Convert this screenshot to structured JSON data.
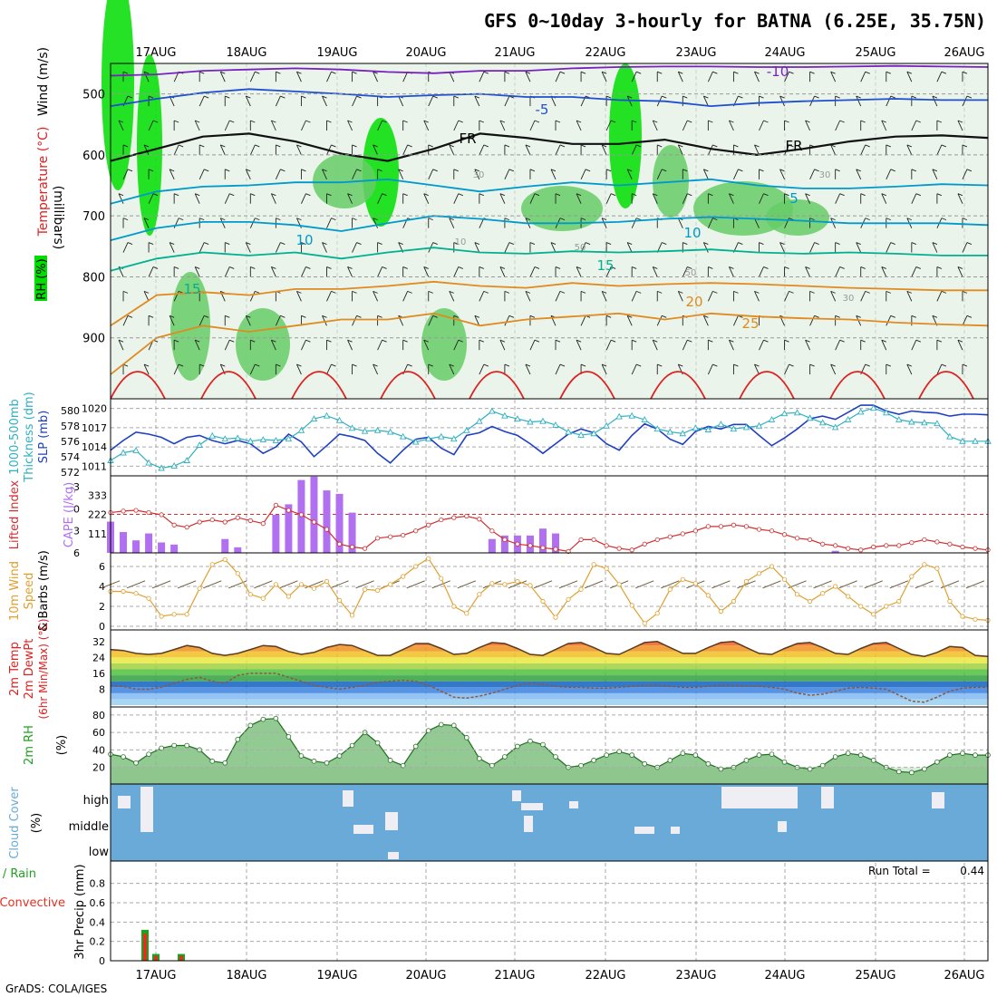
{
  "header": {
    "title": "GFS 0~10day 3-hourly for BATNA (6.25E, 35.75N)",
    "footer": "GrADS: COLA/IGES"
  },
  "colors": {
    "rh_dark": "#00dd00",
    "rh_mid": "#66cc66",
    "rh_light": "#dcecdc",
    "temp_red": "#dd2222",
    "temp_orange": "#e08a20",
    "temp_teal": "#00b090",
    "temp_cyan": "#0099cc",
    "temp_blue": "#1f4fd0",
    "temp_purple": "#7a20c0",
    "slp": "#2040c0",
    "thickness": "#30b0c0",
    "cape": "#b070f0",
    "lifted": "#d03030",
    "wind": "#e0a030",
    "cloud": "#6aaad8",
    "rain": "#20a020",
    "conv": "#e03020"
  },
  "chart_data": {
    "type": "meteogram",
    "dates": [
      "17AUG",
      "18AUG",
      "19AUG",
      "20AUG",
      "21AUG",
      "22AUG",
      "23AUG",
      "24AUG",
      "25AUG",
      "26AUG"
    ],
    "panels": {
      "upper": {
        "ylabels": [
          "Temperature (°C)",
          "Wind (m/s)",
          "RH (%)"
        ],
        "axis_label": "(millibars)",
        "yticks": [
          500,
          600,
          700,
          800,
          900
        ],
        "ylim": [
          1000,
          450
        ],
        "contour_labels": [
          "-10",
          "-5",
          "5",
          "10",
          "15",
          "20",
          "25",
          "FR",
          "FR",
          "30",
          "10",
          "50",
          "50",
          "30",
          "30"
        ],
        "isotherms": [
          {
            "label": "-10",
            "value": -10,
            "p": [
              470,
              468,
              462,
              460,
              458,
              460,
              464,
              466,
              462,
              462,
              458,
              456,
              455,
              455,
              456,
              456,
              455,
              454,
              455,
              456
            ]
          },
          {
            "label": "-5",
            "value": -5,
            "p": [
              520,
              508,
              498,
              492,
              496,
              500,
              505,
              502,
              500,
              505,
              505,
              510,
              512,
              520,
              515,
              512,
              510,
              508,
              510,
              510
            ]
          },
          {
            "label": "FR",
            "value": 0,
            "p": [
              610,
              590,
              570,
              565,
              578,
              598,
              610,
              590,
              565,
              572,
              582,
              582,
              575,
              590,
              600,
              590,
              578,
              570,
              568,
              572
            ]
          },
          {
            "label": "5",
            "value": 5,
            "p": [
              680,
              660,
              652,
              650,
              645,
              645,
              640,
              650,
              660,
              652,
              645,
              650,
              645,
              640,
              650,
              655,
              655,
              652,
              648,
              650
            ]
          },
          {
            "label": "10",
            "value": 10,
            "p": [
              740,
              720,
              710,
              710,
              715,
              725,
              712,
              700,
              705,
              712,
              712,
              710,
              705,
              702,
              705,
              708,
              712,
              712,
              712,
              715
            ]
          },
          {
            "label": "15",
            "value": 15,
            "p": [
              790,
              770,
              760,
              765,
              760,
              770,
              760,
              752,
              760,
              762,
              758,
              760,
              758,
              755,
              760,
              762,
              760,
              762,
              765,
              765
            ]
          },
          {
            "label": "20",
            "value": 20,
            "p": [
              880,
              830,
              825,
              830,
              820,
              820,
              815,
              808,
              815,
              818,
              810,
              815,
              812,
              810,
              812,
              815,
              818,
              820,
              822,
              822
            ]
          },
          {
            "label": "25",
            "value": 25,
            "p": [
              960,
              900,
              880,
              890,
              880,
              870,
              870,
              860,
              880,
              870,
              865,
              860,
              870,
              860,
              865,
              868,
              870,
              875,
              878,
              880
            ]
          }
        ]
      },
      "slp_thickness": {
        "ylabels": [
          "1000-500mb",
          "Thickness (dm)",
          "SLP (mb)"
        ],
        "left_ticks": [
          572,
          574,
          576,
          578,
          580
        ],
        "right_ticks": [
          1011,
          1014,
          1017,
          1020
        ],
        "slp": [
          1013.5,
          1015,
          1016.3,
          1016,
          1015.5,
          1014.5,
          1015.5,
          1015.8,
          1015,
          1014.5,
          1015,
          1014.5,
          1013,
          1014,
          1016,
          1014.8,
          1012.5,
          1014.2,
          1016,
          1015.6,
          1015,
          1013,
          1011.5,
          1013.5,
          1015.2,
          1015.5,
          1013.8,
          1012.8,
          1015.8,
          1016.2,
          1017.2,
          1016.4,
          1015.8,
          1014.5,
          1013,
          1014.5,
          1016,
          1016.8,
          1016.2,
          1014.5,
          1013.5,
          1015.8,
          1017.6,
          1016.8,
          1015.2,
          1014.4,
          1016.4,
          1017.2,
          1016.8,
          1017.5,
          1017.5,
          1015.8,
          1014.2,
          1015.4,
          1016.8,
          1018.4,
          1018.8,
          1018.3,
          1019.4,
          1020.5,
          1020.5,
          1019.6,
          1019.1,
          1019.6,
          1019.4,
          1019.3,
          1018.8,
          1019.1,
          1019.1,
          1019.0
        ],
        "thickness": [
          573.5,
          574.5,
          574.8,
          573.2,
          572.5,
          572.8,
          573.5,
          575.5,
          576.7,
          576.3,
          576.4,
          576.0,
          576.2,
          576.1,
          576.3,
          577.4,
          578.9,
          579.3,
          578.7,
          577.7,
          577.3,
          577.4,
          577.2,
          576.6,
          575.9,
          576.3,
          576.6,
          576.3,
          577.4,
          578.6,
          579.9,
          579.3,
          578.9,
          578.5,
          578.6,
          578.1,
          577.2,
          576.8,
          577.0,
          578.0,
          579.2,
          579.3,
          578.8,
          577.6,
          577.2,
          577.0,
          577.7,
          577.5,
          578.2,
          577.6,
          577.8,
          578.0,
          578.8,
          579.6,
          579.7,
          579.0,
          578.4,
          577.8,
          578.8,
          579.8,
          580.3,
          579.7,
          578.8,
          578.5,
          578.4,
          578.3,
          576.6,
          576.0,
          576.0,
          576.0
        ]
      },
      "cape_li": {
        "ylabels": [
          "Lifted Index",
          "CAPE (J/kg)"
        ],
        "left_ticks": [
          -3,
          0,
          3,
          6
        ],
        "right_ticks": [
          111,
          222,
          333
        ],
        "cape": [
          45,
          30,
          18,
          28,
          15,
          12,
          0,
          0,
          0,
          20,
          8,
          0,
          0,
          55,
          70,
          105,
          110,
          90,
          85,
          58,
          0,
          0,
          0,
          0,
          0,
          0,
          0,
          0,
          0,
          0,
          20,
          25,
          25,
          25,
          35,
          28,
          0,
          0,
          0,
          0,
          0,
          0,
          0,
          0,
          0,
          0,
          0,
          0,
          0,
          0,
          0,
          0,
          0,
          0,
          0,
          0,
          0,
          3,
          0,
          0,
          0,
          0,
          0,
          0,
          0,
          0,
          0,
          0,
          0,
          0
        ],
        "lifted_index": [
          0.5,
          0.3,
          0.2,
          0.5,
          0.8,
          2.2,
          2.5,
          1.8,
          1.5,
          1.8,
          1.2,
          1.6,
          2.0,
          -0.5,
          0.2,
          0.8,
          1.8,
          2.8,
          4.8,
          5.2,
          5.4,
          4.0,
          3.8,
          3.6,
          3.0,
          2.2,
          1.5,
          1.2,
          1.0,
          1.4,
          3.0,
          4.2,
          4.8,
          5.0,
          5.3,
          5.5,
          5.8,
          4.2,
          4.2,
          5.0,
          5.4,
          5.6,
          4.8,
          4.2,
          3.8,
          3.4,
          3.0,
          2.4,
          2.4,
          2.2,
          2.4,
          2.8,
          3.0,
          3.5,
          4.0,
          4.2,
          4.8,
          5.0,
          5.4,
          5.6,
          5.2,
          5.0,
          5.0,
          4.6,
          4.2,
          4.5,
          4.8,
          5.2,
          5.4,
          5.6
        ]
      },
      "wind10m": {
        "ylabels": [
          "10m Wind",
          "Speed",
          "& Barbs (m/s)"
        ],
        "yticks": [
          0,
          2,
          4,
          6
        ],
        "speed": [
          3.5,
          3.5,
          3.3,
          2.8,
          1.0,
          1.2,
          1.2,
          3.8,
          6.2,
          6.7,
          5.3,
          3.2,
          2.8,
          4.2,
          3.0,
          4.2,
          3.8,
          4.5,
          2.6,
          1.1,
          3.7,
          3.6,
          4.2,
          5.0,
          6.0,
          6.8,
          4.8,
          2.0,
          1.3,
          3.2,
          4.3,
          4.2,
          4.5,
          4.1,
          2.5,
          0.9,
          2.7,
          3.7,
          6.2,
          5.8,
          4.2,
          2.1,
          0.3,
          1.3,
          3.7,
          4.7,
          4.3,
          3.1,
          1.5,
          2.5,
          4.5,
          5.3,
          6.0,
          4.7,
          3.2,
          2.5,
          3.3,
          4.0,
          3.0,
          2.0,
          1.2,
          2.0,
          2.5,
          5.0,
          6.2,
          5.8,
          2.5,
          1.0,
          0.7,
          0.6
        ]
      },
      "temp2m": {
        "ylabels": [
          "2m Temp",
          "2m DewPt",
          "(6hr Min/Max) (°C)"
        ],
        "yticks": [
          8,
          16,
          24,
          32
        ],
        "temp": [
          28,
          27.5,
          26,
          25.5,
          26,
          28,
          30,
          29,
          26,
          25,
          26,
          28,
          30,
          29.5,
          27,
          25.5,
          26.5,
          29,
          30.5,
          30,
          27.5,
          25,
          25,
          28,
          31,
          31,
          28.5,
          25.5,
          26,
          29,
          31.5,
          31,
          28.5,
          25.5,
          25,
          28,
          31,
          31.5,
          29,
          26,
          25.5,
          28.5,
          31.5,
          32,
          29,
          26,
          26,
          29,
          31.5,
          32,
          29,
          26,
          25.5,
          28.5,
          31,
          31.5,
          29,
          26,
          25.5,
          28.5,
          31,
          31.5,
          28.5,
          25.5,
          24.5,
          26.5,
          29.5,
          29,
          25,
          24.5
        ],
        "dewpoint": [
          10,
          9.5,
          8,
          8,
          9,
          11,
          13,
          14,
          12,
          11,
          15,
          16,
          16,
          16,
          14,
          12,
          10,
          9,
          8,
          9,
          10,
          11.5,
          12,
          12.5,
          12,
          10,
          7,
          4,
          3.5,
          4.5,
          6,
          8,
          10,
          11,
          10.5,
          9.5,
          9,
          9,
          8.5,
          8.5,
          9,
          9.5,
          10,
          10,
          9.5,
          9,
          9,
          9.5,
          10,
          10,
          9.5,
          9.5,
          9,
          8,
          6,
          5,
          5.5,
          7,
          8.5,
          9,
          8.5,
          8,
          5,
          2,
          1.5,
          4,
          7,
          8.5,
          9,
          9
        ]
      },
      "rh2m": {
        "ylabels": [
          "2m RH",
          "(%)"
        ],
        "yticks": [
          20,
          40,
          60,
          80
        ],
        "values": [
          35,
          32,
          25,
          35,
          42,
          45,
          45,
          40,
          27,
          25,
          52,
          68,
          75,
          76,
          55,
          33,
          27,
          25,
          33,
          45,
          60,
          48,
          28,
          22,
          44,
          62,
          69,
          68,
          54,
          30,
          22,
          32,
          44,
          50,
          46,
          32,
          20,
          22,
          28,
          34,
          38,
          34,
          24,
          20,
          28,
          36,
          34,
          24,
          18,
          20,
          28,
          34,
          35,
          26,
          20,
          18,
          22,
          32,
          36,
          34,
          28,
          20,
          15,
          14,
          18,
          26,
          34,
          36,
          34,
          34
        ]
      },
      "cloud": {
        "ylabels": [
          "Cloud Cover",
          "(%)"
        ],
        "levels": [
          "high",
          "middle",
          "low"
        ]
      },
      "precip": {
        "ylabels": [
          "Total / Rain",
          "Convective",
          "3hr Precip (mm)"
        ],
        "yticks": [
          0,
          0.2,
          0.4,
          0.6,
          0.8
        ],
        "run_total_label": "Run Total =",
        "run_total": "0.44",
        "rain": [
          0,
          0,
          0,
          0.32,
          0.07,
          0,
          0,
          0.07,
          0,
          0
        ],
        "convective": [
          0,
          0,
          0,
          0.28,
          0.05,
          0,
          0,
          0.05,
          0,
          0
        ]
      }
    }
  }
}
